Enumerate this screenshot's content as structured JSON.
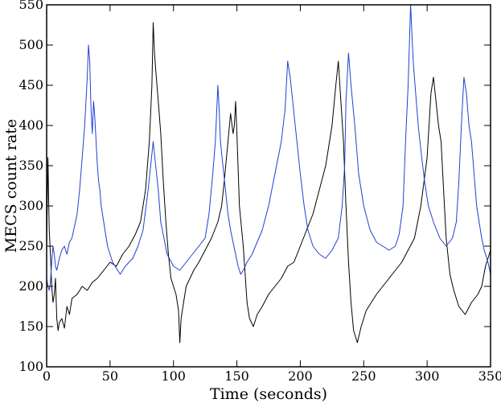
{
  "chart_data": {
    "type": "line",
    "title": "",
    "xlabel": "Time (seconds)",
    "ylabel": "MECS count rate",
    "xlim": [
      0,
      350
    ],
    "ylim": [
      100,
      550
    ],
    "xticks": [
      0,
      50,
      100,
      150,
      200,
      250,
      300,
      350
    ],
    "yticks": [
      100,
      150,
      200,
      250,
      300,
      350,
      400,
      450,
      500,
      550
    ],
    "grid": false,
    "legend": "none",
    "series": [
      {
        "color": "#000000",
        "x": [
          0,
          1,
          2,
          3,
          4,
          5,
          6,
          7,
          8,
          9,
          10,
          12,
          14,
          16,
          18,
          20,
          24,
          28,
          32,
          36,
          40,
          45,
          50,
          55,
          60,
          65,
          70,
          74,
          78,
          81,
          83,
          84,
          85,
          86,
          88,
          90,
          92,
          94,
          96,
          98,
          100,
          102,
          104,
          105,
          106,
          108,
          110,
          113,
          116,
          120,
          125,
          130,
          135,
          138,
          140,
          143,
          145,
          147,
          148,
          149,
          150,
          152,
          155,
          158,
          160,
          163,
          166,
          170,
          175,
          180,
          185,
          190,
          195,
          200,
          205,
          210,
          215,
          220,
          225,
          228,
          230,
          232,
          234,
          236,
          238,
          240,
          242,
          245,
          248,
          252,
          256,
          260,
          265,
          270,
          275,
          280,
          285,
          290,
          295,
          300,
          303,
          305,
          307,
          309,
          311,
          313,
          315,
          318,
          321,
          325,
          330,
          335,
          340,
          343,
          346,
          350
        ],
        "y": [
          250,
          360,
          270,
          240,
          200,
          180,
          190,
          210,
          160,
          145,
          155,
          160,
          148,
          175,
          165,
          185,
          190,
          200,
          195,
          205,
          210,
          220,
          230,
          225,
          240,
          250,
          265,
          280,
          320,
          380,
          450,
          528,
          490,
          470,
          430,
          390,
          330,
          280,
          240,
          210,
          200,
          190,
          170,
          130,
          160,
          180,
          200,
          210,
          220,
          230,
          245,
          260,
          280,
          300,
          330,
          380,
          415,
          390,
          400,
          430,
          390,
          300,
          250,
          180,
          160,
          150,
          165,
          175,
          190,
          200,
          210,
          225,
          230,
          250,
          270,
          290,
          320,
          350,
          400,
          450,
          480,
          430,
          380,
          300,
          230,
          180,
          145,
          130,
          150,
          170,
          180,
          190,
          200,
          210,
          220,
          230,
          245,
          260,
          300,
          360,
          440,
          460,
          430,
          400,
          380,
          320,
          260,
          215,
          195,
          175,
          165,
          180,
          190,
          200,
          225,
          245
        ]
      },
      {
        "color": "#1f3fd4",
        "x": [
          0,
          1,
          2,
          3,
          4,
          5,
          6,
          7,
          8,
          10,
          12,
          14,
          16,
          18,
          20,
          22,
          24,
          26,
          28,
          30,
          32,
          33,
          34,
          35,
          36,
          37,
          38,
          39,
          40,
          41,
          42,
          43,
          44,
          45,
          46,
          47,
          48,
          50,
          52,
          54,
          56,
          58,
          60,
          62,
          65,
          68,
          72,
          76,
          80,
          84,
          86,
          88,
          90,
          95,
          100,
          105,
          110,
          115,
          120,
          125,
          128,
          131,
          133,
          135,
          136,
          137,
          139,
          141,
          143,
          145,
          147,
          149,
          151,
          153,
          155,
          158,
          162,
          166,
          170,
          175,
          180,
          185,
          188,
          190,
          192,
          194,
          196,
          198,
          200,
          203,
          206,
          210,
          215,
          220,
          225,
          230,
          233,
          235,
          236,
          238,
          240,
          243,
          246,
          250,
          255,
          260,
          265,
          270,
          275,
          278,
          281,
          283,
          285,
          287,
          289,
          291,
          293,
          295,
          298,
          301,
          305,
          310,
          315,
          320,
          323,
          325,
          327,
          329,
          331,
          333,
          335,
          337,
          339,
          341,
          343,
          345,
          348,
          350
        ],
        "y": [
          210,
          200,
          195,
          205,
          230,
          250,
          240,
          225,
          220,
          235,
          245,
          250,
          240,
          255,
          260,
          275,
          290,
          320,
          360,
          400,
          460,
          500,
          480,
          420,
          390,
          430,
          410,
          380,
          350,
          330,
          320,
          300,
          290,
          280,
          270,
          260,
          250,
          240,
          230,
          225,
          220,
          215,
          220,
          225,
          230,
          235,
          250,
          270,
          320,
          380,
          350,
          320,
          280,
          240,
          225,
          220,
          230,
          240,
          250,
          260,
          290,
          340,
          380,
          450,
          420,
          380,
          350,
          320,
          290,
          270,
          255,
          240,
          225,
          215,
          220,
          230,
          240,
          255,
          270,
          300,
          340,
          380,
          420,
          480,
          460,
          430,
          400,
          370,
          340,
          300,
          270,
          250,
          240,
          235,
          245,
          260,
          300,
          350,
          430,
          490,
          450,
          400,
          340,
          300,
          270,
          255,
          250,
          245,
          250,
          265,
          300,
          380,
          450,
          550,
          480,
          440,
          400,
          370,
          330,
          300,
          280,
          260,
          250,
          260,
          280,
          330,
          400,
          460,
          440,
          400,
          380,
          340,
          300,
          280,
          260,
          245,
          230,
          215
        ]
      }
    ]
  }
}
